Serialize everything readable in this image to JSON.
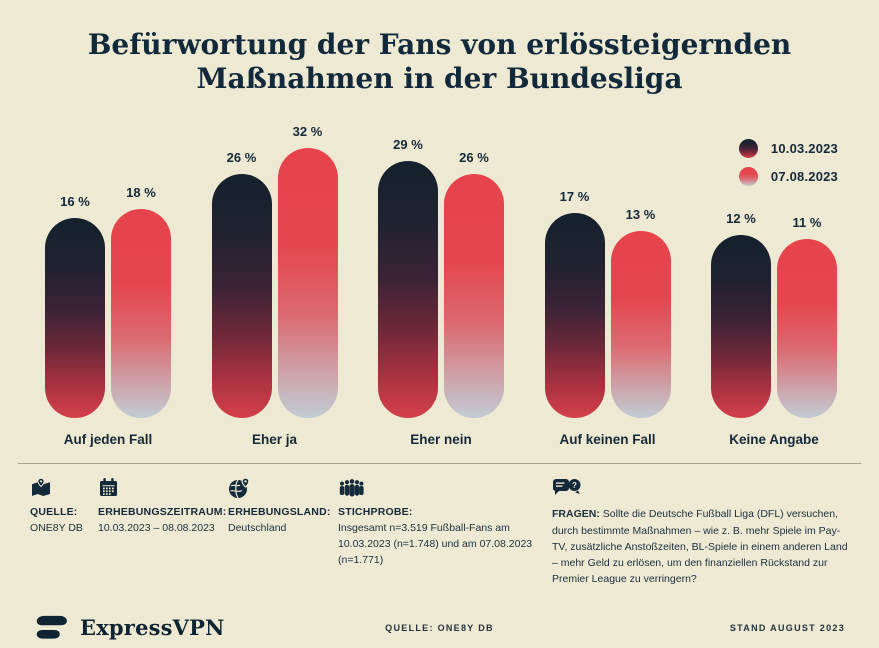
{
  "title": {
    "line1": "Befürwortung der Fans von erlössteigernden",
    "line2": "Maßnahmen in der Bundesliga"
  },
  "legend": [
    {
      "label": "10.03.2023",
      "swatch": "dark-gradient-circle"
    },
    {
      "label": "07.08.2023",
      "swatch": "red-gradient-circle"
    }
  ],
  "chart_data": {
    "type": "bar",
    "title": "Befürwortung der Fans von erlössteigernden Maßnahmen in der Bundesliga",
    "categories": [
      "Auf jeden Fall",
      "Eher ja",
      "Eher nein",
      "Auf keinen Fall",
      "Keine Angabe"
    ],
    "series": [
      {
        "name": "10.03.2023",
        "values": [
          16,
          26,
          29,
          17,
          12
        ]
      },
      {
        "name": "07.08.2023",
        "values": [
          18,
          32,
          26,
          13,
          11
        ]
      }
    ],
    "value_suffix": " %",
    "unit": "percent",
    "legend_position": "top-right",
    "grid": false,
    "bar_shape": "pill",
    "colors": {
      "series1_gradient_top": "#15212E",
      "series1_gradient_bottom": "#D4404A",
      "series2_gradient_top": "#E7434C",
      "series2_gradient_bottom": "#C2CCD4",
      "background": "#EDE9D2",
      "text": "#14293A"
    }
  },
  "meta": {
    "source": {
      "label": "QUELLE:",
      "value": "ONE8Y DB",
      "icon": "map-pin-icon"
    },
    "period": {
      "label": "ERHEBUNGSZEITRAUM:",
      "value": "10.03.2023 – 08.08.2023",
      "icon": "calendar-icon"
    },
    "country": {
      "label": "ERHEBUNGSLAND:",
      "value": "Deutschland",
      "icon": "globe-pin-icon"
    },
    "sample": {
      "label": "STICHPROBE:",
      "value": "Insgesamt n=3.519 Fußball-Fans am 10.03.2023 (n=1.748) und am 07.08.2023 (n=1.771)",
      "icon": "crowd-icon"
    },
    "question": {
      "label": "FRAGEN:",
      "value": "Sollte die Deutsche Fußball Liga (DFL) versuchen, durch bestimmte Maßnahmen – wie z. B. mehr Spiele im Pay-TV, zusätzliche Anstoßzeiten, BL-Spiele in einem anderen Land – mehr Geld zu erlösen, um den finanziellen Rückstand zur Premier League zu verringern?",
      "icon": "speech-bubbles-icon"
    }
  },
  "footer": {
    "brand": "ExpressVPN",
    "source_note": "QUELLE: ONE8Y DB",
    "stand_note": "STAND AUGUST 2023"
  }
}
